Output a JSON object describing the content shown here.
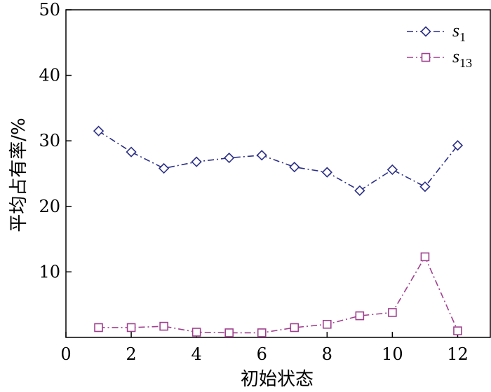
{
  "chart_data": {
    "type": "line",
    "xlabel": "初始状态",
    "ylabel": "平均占有率/%",
    "xlim": [
      0,
      13
    ],
    "ylim": [
      0,
      50
    ],
    "xticks": [
      0,
      2,
      4,
      6,
      8,
      10,
      12
    ],
    "yticks": [
      10,
      20,
      30,
      40,
      50
    ],
    "x_tick_labels": [
      "0",
      "2",
      "4",
      "6",
      "8",
      "10",
      "12"
    ],
    "y_tick_labels": [
      "10",
      "20",
      "30",
      "40",
      "50"
    ],
    "grid": false,
    "legend_position": "top-right",
    "x": [
      1,
      2,
      3,
      4,
      5,
      6,
      7,
      8,
      9,
      10,
      11,
      12
    ],
    "series": [
      {
        "name": "s",
        "subscript": "1",
        "marker": "diamond",
        "color": "#2b2f86",
        "values": [
          31.5,
          28.3,
          25.8,
          26.8,
          27.4,
          27.8,
          26.0,
          25.2,
          22.4,
          25.6,
          23.0,
          29.3
        ]
      },
      {
        "name": "s",
        "subscript": "13",
        "marker": "square",
        "color": "#a0408f",
        "values": [
          1.5,
          1.5,
          1.7,
          0.8,
          0.7,
          0.7,
          1.5,
          2.0,
          3.3,
          3.8,
          12.3,
          1.0
        ]
      }
    ]
  }
}
